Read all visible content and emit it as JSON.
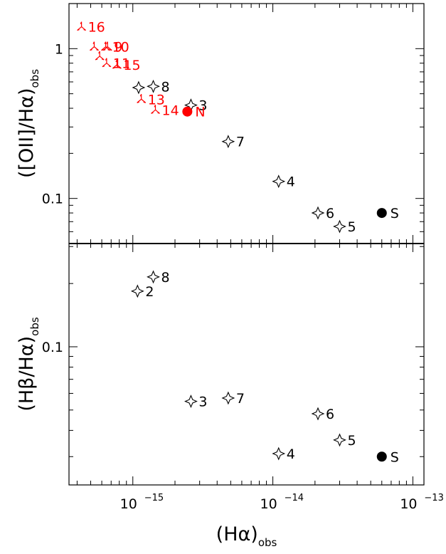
{
  "chart_data": [
    {
      "type": "scatter",
      "panel": "top",
      "ylabel": {
        "main": "([OII]/Hα)",
        "sub": "obs"
      },
      "xscale": "log",
      "yscale": "log",
      "xlim": [
        3.5e-16,
        1.2e-13
      ],
      "ylim": [
        0.05,
        2.0
      ],
      "ytick_labels": [
        "1",
        "0.1"
      ],
      "series": [
        {
          "marker": "star-black",
          "color": "#000000",
          "points": [
            {
              "label": "3",
              "x": 2.6e-15,
              "y": 0.42
            },
            {
              "label": "8",
              "x": 1.4e-15,
              "y": 0.56
            },
            {
              "label": "",
              "x": 1.1e-15,
              "y": 0.55
            },
            {
              "label": "7",
              "x": 4.8e-15,
              "y": 0.24
            },
            {
              "label": "4",
              "x": 1.1e-14,
              "y": 0.13
            },
            {
              "label": "6",
              "x": 2.1e-14,
              "y": 0.08
            },
            {
              "label": "5",
              "x": 3e-14,
              "y": 0.065
            }
          ]
        },
        {
          "marker": "tri-red",
          "color": "#ff0000",
          "points": [
            {
              "label": "16",
              "x": 4.3e-16,
              "y": 1.4
            },
            {
              "label": "",
              "x": 5.3e-16,
              "y": 1.03
            },
            {
              "label": "10",
              "x": 6.4e-16,
              "y": 1.03
            },
            {
              "label": "9",
              "x": 6.6e-16,
              "y": 1.03
            },
            {
              "label": "",
              "x": 5.8e-16,
              "y": 0.89
            },
            {
              "label": "11",
              "x": 6.5e-16,
              "y": 0.8
            },
            {
              "label": "15",
              "x": 7.7e-16,
              "y": 0.78
            },
            {
              "label": "13",
              "x": 1.15e-15,
              "y": 0.46
            },
            {
              "label": "14",
              "x": 1.45e-15,
              "y": 0.39
            }
          ]
        },
        {
          "marker": "circle-red",
          "color": "#ff0000",
          "points": [
            {
              "label": "N",
              "x": 2.45e-15,
              "y": 0.38
            }
          ]
        },
        {
          "marker": "circle-black",
          "color": "#000000",
          "points": [
            {
              "label": "S",
              "x": 6e-14,
              "y": 0.08
            }
          ]
        }
      ]
    },
    {
      "type": "scatter",
      "panel": "bottom",
      "xlabel": {
        "main": "(Hα)",
        "sub": "obs"
      },
      "ylabel": {
        "main": "(Hβ/Hα)",
        "sub": "obs"
      },
      "xscale": "log",
      "yscale": "log",
      "xlim": [
        3.5e-16,
        1.2e-13
      ],
      "ylim": [
        0.022,
        0.31
      ],
      "ytick_labels": [
        "0.1"
      ],
      "xtick_labels": [
        {
          "base": "10",
          "exp": "−15"
        },
        {
          "base": "10",
          "exp": "−14"
        },
        {
          "base": "10",
          "exp": "−13"
        }
      ],
      "series": [
        {
          "marker": "star-black",
          "color": "#000000",
          "points": [
            {
              "label": "8",
              "x": 1.4e-15,
              "y": 0.215
            },
            {
              "label": "2",
              "x": 1.08e-15,
              "y": 0.184
            },
            {
              "label": "3",
              "x": 2.6e-15,
              "y": 0.055
            },
            {
              "label": "7",
              "x": 4.8e-15,
              "y": 0.057
            },
            {
              "label": "6",
              "x": 2.1e-14,
              "y": 0.048
            },
            {
              "label": "5",
              "x": 3e-14,
              "y": 0.036
            },
            {
              "label": "4",
              "x": 1.1e-14,
              "y": 0.031
            }
          ]
        },
        {
          "marker": "circle-black",
          "color": "#000000",
          "points": [
            {
              "label": "S",
              "x": 6e-14,
              "y": 0.03
            }
          ]
        }
      ]
    }
  ]
}
